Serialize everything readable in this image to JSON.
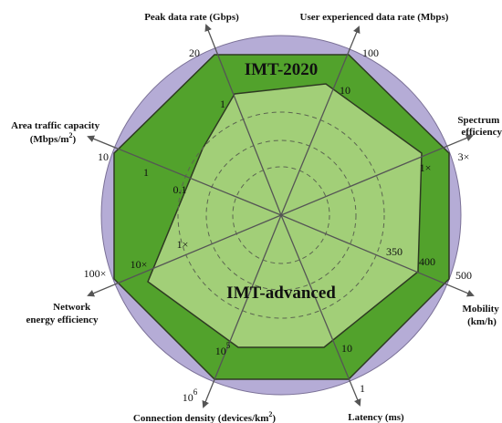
{
  "diagram": {
    "outer_label": "IMT-2020",
    "inner_label": "IMT-advanced",
    "colors": {
      "background_circle": "#b5acd6",
      "imt2020_fill": "#52a22c",
      "imt_advanced_fill": "#a2cf78",
      "edge": "#2e3a22",
      "axis": "#555555"
    },
    "axes": [
      {
        "title": "Peak data rate (Gbps)",
        "outer_value": "20",
        "inner_value": "1"
      },
      {
        "title": "User experienced data rate (Mbps)",
        "outer_value": "100",
        "inner_value": "10"
      },
      {
        "title_line1": "Spectrum",
        "title_line2": "efficiency",
        "outer_value": "3×",
        "inner_value": "1×"
      },
      {
        "title_line1": "Mobility",
        "title_line2": "(km/h)",
        "outer_value": "500",
        "mid_value": "400",
        "inner_value": "350"
      },
      {
        "title": "Latency (ms)",
        "outer_value": "1",
        "inner_value": "10"
      },
      {
        "title": "Connection density (devices/km",
        "title_sup": "2",
        "title_end": ")",
        "outer_value": "10",
        "outer_sup": "6",
        "inner_value": "10",
        "inner_sup": "5"
      },
      {
        "title_line1": "Network",
        "title_line2": "energy efficiency",
        "outer_value": "100×",
        "mid_value": "10×",
        "inner_value": "1×"
      },
      {
        "title_line1": "Area traffic capacity",
        "title_line2_main": "(Mbps/m",
        "title_line2_sup": "2",
        "title_line2_end": ")",
        "outer_value": "10",
        "mid_value": "1",
        "inner_value": "0.1"
      }
    ]
  }
}
